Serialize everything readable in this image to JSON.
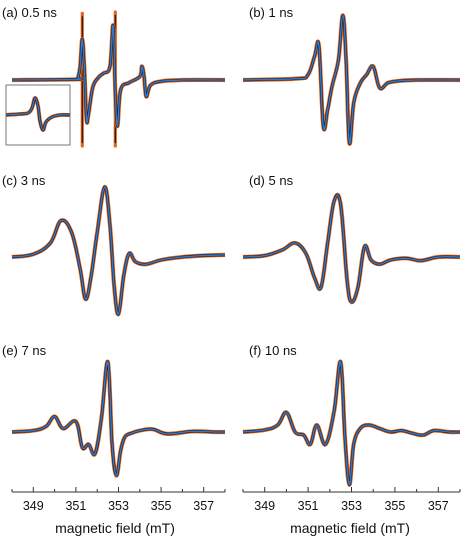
{
  "colors": {
    "envelope": "#e2661c",
    "core": "#1b1b1b",
    "mean": "#2f78d2",
    "axis": "#333333",
    "inset_border": "#777777"
  },
  "chart_data": {
    "type": "line",
    "xlabel": "magnetic field (mT)",
    "xlim": [
      348.0,
      358.0
    ],
    "xticks": [
      349,
      351,
      353,
      355,
      357
    ],
    "panels": [
      {
        "id": "a",
        "title": "(a) 0.5 ns",
        "has_inset": true,
        "baseline": 0.0,
        "x": [
          348,
          351.0,
          351.1,
          351.2,
          351.3,
          351.4,
          351.5,
          351.6,
          351.8,
          352.1,
          352.3,
          352.6,
          352.75,
          352.85,
          352.95,
          353.1,
          353.5,
          354.0,
          354.1,
          354.2,
          354.3,
          354.5,
          355.0,
          356.0,
          358
        ],
        "y": [
          0.0,
          0.01,
          0.04,
          0.2,
          0.6,
          0.15,
          -0.6,
          -0.5,
          -0.1,
          0.05,
          0.1,
          0.2,
          0.8,
          -0.2,
          -0.7,
          -0.15,
          -0.04,
          0.05,
          0.2,
          0.05,
          -0.25,
          -0.08,
          -0.02,
          0.0,
          0.0
        ],
        "spikes": [
          {
            "x": 351.3,
            "top": 0.98,
            "bottom": -1.0
          },
          {
            "x": 352.85,
            "top": 1.0,
            "bottom": -1.0
          }
        ]
      },
      {
        "id": "b",
        "title": "(b) 1 ns",
        "has_inset": false,
        "baseline": 0.0,
        "x": [
          348,
          350.5,
          351.0,
          351.3,
          351.5,
          351.7,
          351.9,
          352.1,
          352.4,
          352.6,
          352.75,
          352.9,
          353.1,
          353.4,
          353.7,
          354.0,
          354.3,
          354.7,
          355.3,
          356.0,
          358
        ],
        "y": [
          0.0,
          0.02,
          0.08,
          0.35,
          0.5,
          -0.7,
          -0.45,
          -0.1,
          0.3,
          0.95,
          0.3,
          -0.95,
          -0.35,
          -0.05,
          0.08,
          0.2,
          -0.12,
          -0.04,
          -0.01,
          0.0,
          0.0
        ]
      },
      {
        "id": "c",
        "title": "(c) 3 ns",
        "has_inset": false,
        "baseline": 0.0,
        "x": [
          348,
          349.0,
          349.8,
          350.3,
          350.8,
          351.2,
          351.45,
          351.7,
          352.0,
          352.35,
          352.6,
          352.8,
          353.0,
          353.25,
          353.5,
          353.8,
          354.3,
          355.0,
          356.0,
          357.0,
          358
        ],
        "y": [
          0.0,
          0.04,
          0.2,
          0.52,
          0.35,
          -0.2,
          -0.7,
          -0.35,
          0.35,
          1.0,
          0.45,
          -0.5,
          -0.95,
          -0.3,
          0.05,
          -0.08,
          -0.12,
          -0.05,
          0.0,
          0.02,
          0.03
        ]
      },
      {
        "id": "d",
        "title": "(d) 5 ns",
        "has_inset": false,
        "baseline": 0.0,
        "x": [
          348,
          349.0,
          349.8,
          350.4,
          350.9,
          351.3,
          351.6,
          351.9,
          352.2,
          352.5,
          352.8,
          353.0,
          353.3,
          353.6,
          353.9,
          354.3,
          354.8,
          355.5,
          356.2,
          357.0,
          358
        ],
        "y": [
          0.0,
          0.02,
          0.1,
          0.2,
          0.05,
          -0.35,
          -0.5,
          0.2,
          0.8,
          0.75,
          -0.4,
          -0.75,
          -0.5,
          0.15,
          -0.05,
          -0.12,
          -0.05,
          -0.02,
          -0.06,
          0.0,
          0.0
        ]
      },
      {
        "id": "e",
        "title": "(e) 7 ns",
        "has_inset": false,
        "baseline": 0.0,
        "x": [
          348,
          349.0,
          349.6,
          350.0,
          350.4,
          351.0,
          351.3,
          351.6,
          351.9,
          352.2,
          352.5,
          352.7,
          352.9,
          353.1,
          353.3,
          353.6,
          354.0,
          354.6,
          355.3,
          356.5,
          357.5,
          358
        ],
        "y": [
          0.0,
          0.02,
          0.08,
          0.22,
          0.05,
          0.15,
          -0.25,
          -0.2,
          -0.35,
          0.2,
          1.0,
          -0.2,
          -0.7,
          -0.3,
          -0.08,
          -0.02,
          0.02,
          0.04,
          -0.03,
          0.01,
          0.0,
          0.0
        ]
      },
      {
        "id": "f",
        "title": "(f) 10 ns",
        "has_inset": false,
        "baseline": 0.0,
        "x": [
          348,
          349.0,
          349.6,
          350.0,
          350.4,
          350.8,
          351.1,
          351.4,
          351.8,
          352.2,
          352.5,
          352.7,
          352.9,
          353.1,
          353.4,
          353.8,
          354.3,
          354.8,
          355.3,
          355.8,
          356.3,
          356.8,
          357.5,
          358
        ],
        "y": [
          0.0,
          0.03,
          0.1,
          0.28,
          0.0,
          -0.05,
          -0.2,
          0.1,
          -0.2,
          0.3,
          1.0,
          -0.1,
          -0.85,
          -0.2,
          0.05,
          0.1,
          0.05,
          0.0,
          0.02,
          -0.02,
          -0.05,
          0.02,
          0.0,
          0.0
        ]
      }
    ]
  }
}
